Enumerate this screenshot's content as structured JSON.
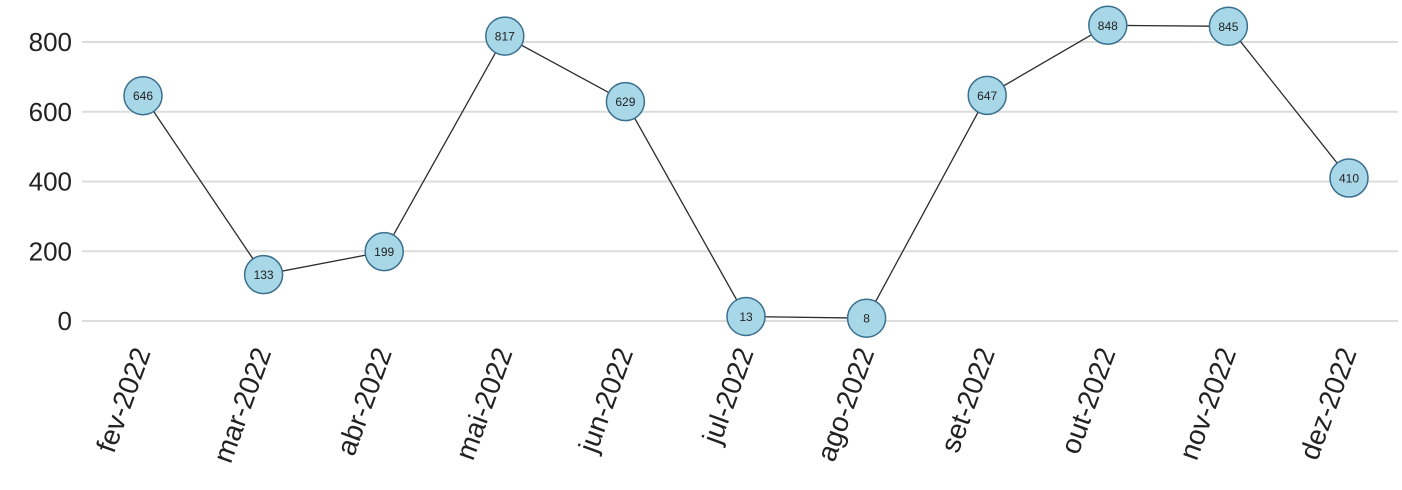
{
  "chart_data": {
    "type": "line",
    "title": "",
    "xlabel": "",
    "ylabel": "",
    "categories": [
      "fev-2022",
      "mar-2022",
      "abr-2022",
      "mai-2022",
      "jun-2022",
      "jul-2022",
      "ago-2022",
      "set-2022",
      "out-2022",
      "nov-2022",
      "dez-2022"
    ],
    "series": [
      {
        "values": [
          646,
          133,
          199,
          817,
          629,
          13,
          8,
          647,
          848,
          845,
          410
        ]
      }
    ],
    "data_labels": [
      "646",
      "133",
      "199",
      "817",
      "629",
      "13",
      "8",
      "647",
      "848",
      "845",
      "410"
    ],
    "y_ticks": [
      0,
      200,
      400,
      600,
      800
    ],
    "y_tick_labels": [
      "0",
      "200",
      "400",
      "600",
      "800"
    ],
    "ylim": [
      0,
      860
    ],
    "grid": "horizontal",
    "legend": "none",
    "colors": {
      "marker_fill": "#a8d8e8",
      "marker_stroke": "#3a6f8f",
      "line": "#2b2b2b",
      "grid": "#dcdcdc"
    }
  }
}
